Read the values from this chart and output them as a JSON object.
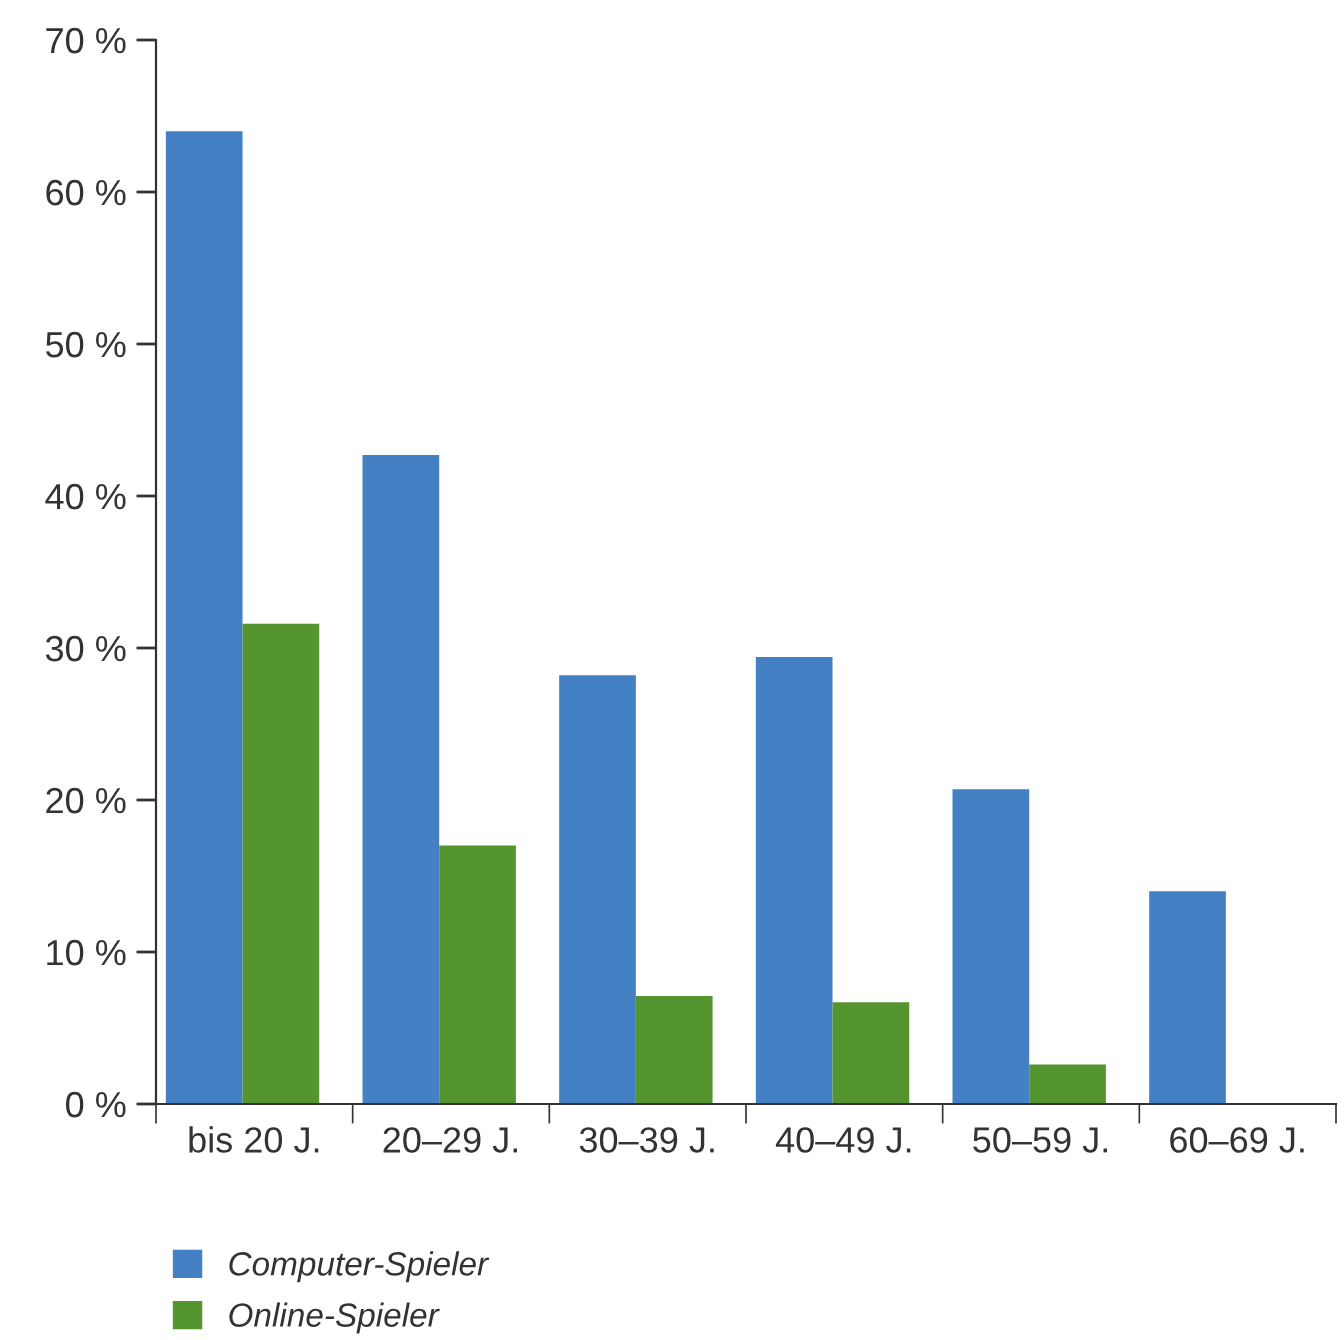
{
  "chart_data": {
    "type": "bar",
    "categories": [
      "bis 20 J.",
      "20–29 J.",
      "30–39 J.",
      "40–49 J.",
      "50–59 J.",
      "60–69 J."
    ],
    "series": [
      {
        "name": "Computer-Spieler",
        "color": "#4481c4",
        "values": [
          64.0,
          42.7,
          28.2,
          29.4,
          20.7,
          14.0
        ]
      },
      {
        "name": "Online-Spieler",
        "color": "#55952f",
        "values": [
          31.6,
          17.0,
          7.1,
          6.7,
          2.6,
          null
        ]
      }
    ],
    "ylim": [
      0,
      70
    ],
    "yticks": [
      {
        "value": 0,
        "label": "0 %"
      },
      {
        "value": 10,
        "label": "10 %"
      },
      {
        "value": 20,
        "label": "20 %"
      },
      {
        "value": 30,
        "label": "30 %"
      },
      {
        "value": 40,
        "label": "40 %"
      },
      {
        "value": 50,
        "label": "50 %"
      },
      {
        "value": 60,
        "label": "60 %"
      },
      {
        "value": 70,
        "label": "70 %"
      }
    ],
    "grid": false,
    "legend": "bottom left"
  }
}
